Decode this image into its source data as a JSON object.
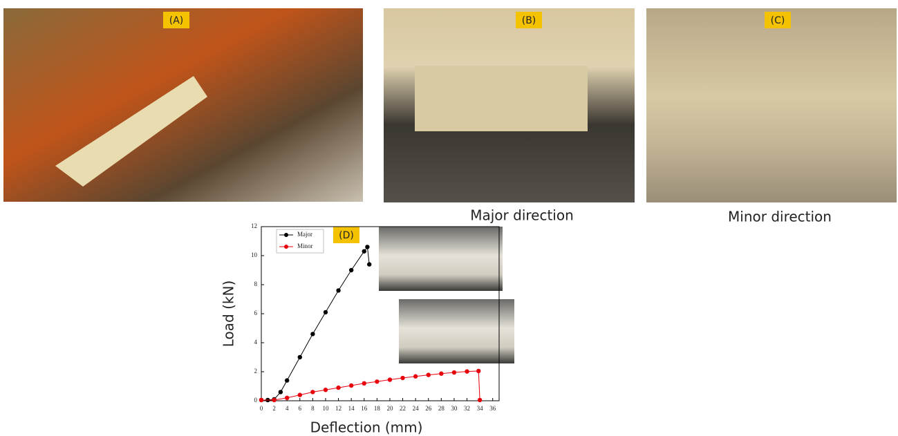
{
  "panels": {
    "labels": [
      "(A)",
      "(B)",
      "(C)",
      "(D)"
    ],
    "captions": [
      "Major direction",
      "Minor direction"
    ]
  },
  "chart_data": {
    "type": "line",
    "xlabel": "Deflection (mm)",
    "ylabel": "Load (kN)",
    "xlim": [
      0,
      37
    ],
    "ylim": [
      0,
      12
    ],
    "xticks": [
      0,
      2,
      4,
      6,
      8,
      10,
      12,
      14,
      16,
      18,
      20,
      22,
      24,
      26,
      28,
      30,
      32,
      34,
      36
    ],
    "yticks": [
      0,
      2,
      4,
      6,
      8,
      10,
      12
    ],
    "legend": "upper-left",
    "series": [
      {
        "name": "Major",
        "color": "#000000",
        "x": [
          0,
          1,
          2,
          3,
          4,
          6,
          8,
          10,
          12,
          14,
          16,
          16.5,
          16.8
        ],
        "values": [
          0.05,
          0.05,
          0.1,
          0.6,
          1.4,
          3.0,
          4.6,
          6.1,
          7.6,
          9.0,
          10.3,
          10.6,
          9.4
        ]
      },
      {
        "name": "Minor",
        "color": "#e8000b",
        "x": [
          0,
          2,
          4,
          6,
          8,
          10,
          12,
          14,
          16,
          18,
          20,
          22,
          24,
          26,
          28,
          30,
          32,
          33.8,
          34
        ],
        "values": [
          0.05,
          0.05,
          0.2,
          0.4,
          0.6,
          0.75,
          0.9,
          1.05,
          1.2,
          1.32,
          1.45,
          1.57,
          1.68,
          1.78,
          1.87,
          1.95,
          2.02,
          2.05,
          0.05
        ]
      }
    ]
  }
}
